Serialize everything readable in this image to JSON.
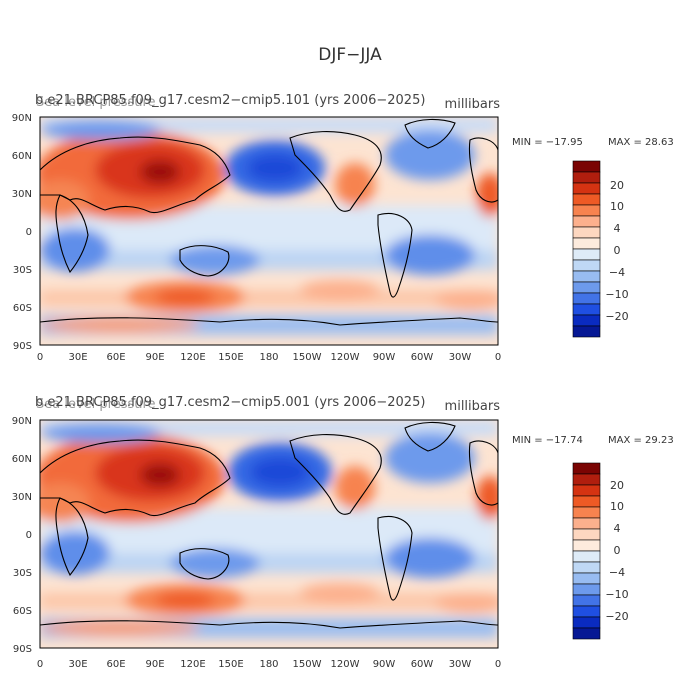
{
  "figure_title": "DJF−JJA",
  "panels": [
    {
      "title_left": "b.e21.BRCP85.f09_g17.cesm2−cmip5.101 (yrs 2006−2025)",
      "title_right": "millibars",
      "title_overprint": "Sea level pressure",
      "min_label": "MIN = −17.95",
      "max_label": "MAX =  28.63",
      "lat_labels": [
        "90N",
        "60N",
        "30N",
        "0",
        "30S",
        "60S",
        "90S"
      ],
      "lon_labels": [
        "0",
        "30E",
        "60E",
        "90E",
        "120E",
        "150E",
        "180",
        "150W",
        "120W",
        "90W",
        "60W",
        "30W",
        "0"
      ],
      "colorbar_labels": [
        "20",
        "10",
        "4",
        "0",
        "−4",
        "−10",
        "−20"
      ]
    },
    {
      "title_left": "b.e21.BRCP85.f09_g17.cesm2−cmip5.001 (yrs 2006−2025)",
      "title_right": "millibars",
      "title_overprint": "Sea level pressure",
      "min_label": "MIN = −17.74",
      "max_label": "MAX =  29.23",
      "lat_labels": [
        "90N",
        "60N",
        "30N",
        "0",
        "30S",
        "60S",
        "90S"
      ],
      "lon_labels": [
        "0",
        "30E",
        "60E",
        "90E",
        "120E",
        "150E",
        "180",
        "150W",
        "120W",
        "90W",
        "60W",
        "30W",
        "0"
      ],
      "colorbar_labels": [
        "20",
        "10",
        "4",
        "0",
        "−4",
        "−10",
        "−20"
      ]
    }
  ],
  "colorbar_colors": [
    "#7a0403",
    "#b01e0e",
    "#d53312",
    "#ee5a25",
    "#f7834f",
    "#fcb08d",
    "#fdd7c0",
    "#fdebdd",
    "#deebf7",
    "#bfd8f5",
    "#98bcf1",
    "#6d9aec",
    "#4273e7",
    "#1f4fe2",
    "#0a2bc0",
    "#061894"
  ],
  "map_colors": {
    "land_outline": "#000000"
  }
}
